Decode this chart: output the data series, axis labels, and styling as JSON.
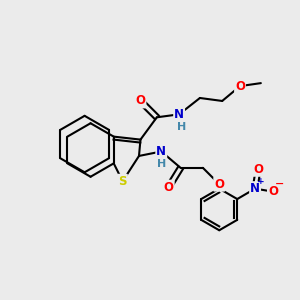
{
  "bg_color": "#ebebeb",
  "atom_colors": {
    "C": "#000000",
    "N": "#0000cc",
    "O": "#ff0000",
    "S": "#cccc00",
    "H": "#4488aa",
    "plus": "#0000cc",
    "minus": "#ff0000"
  },
  "bond_color": "#000000",
  "bond_width": 1.5,
  "figsize": [
    3.0,
    3.0
  ],
  "dpi": 100
}
